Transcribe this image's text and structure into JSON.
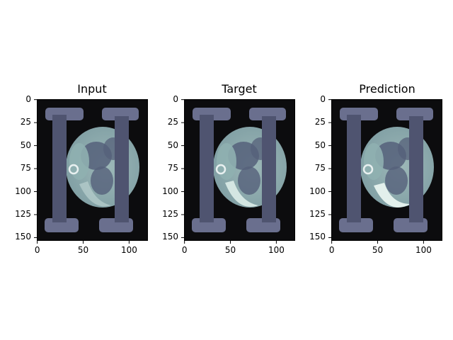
{
  "panels": [
    {
      "title": "Input",
      "variant": "input"
    },
    {
      "title": "Target",
      "variant": "target"
    },
    {
      "title": "Prediction",
      "variant": "prediction"
    }
  ],
  "y_ticks": [
    "0",
    "25",
    "50",
    "75",
    "100",
    "125",
    "150"
  ],
  "x_ticks": [
    "0",
    "50",
    "100"
  ],
  "colors": {
    "background": "#0c0c0e",
    "bar": "#6a6f8e",
    "bar_dark": "#4f5470",
    "tissue": "#7f9ea3",
    "tissue_light": "#b9d0cf",
    "organ": "#55607a",
    "axis": "#000000"
  }
}
